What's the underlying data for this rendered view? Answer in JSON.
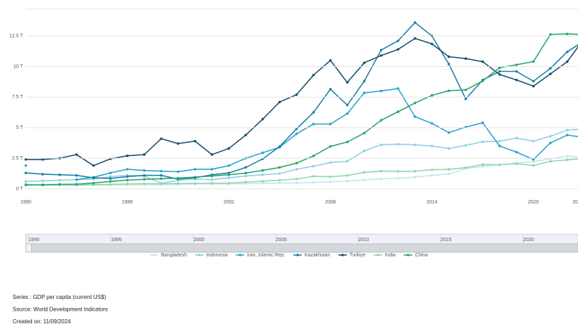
{
  "chart_data": {
    "type": "line",
    "x": [
      1990,
      1991,
      1992,
      1993,
      1994,
      1995,
      1996,
      1997,
      1998,
      1999,
      2000,
      2001,
      2002,
      2003,
      2004,
      2005,
      2006,
      2007,
      2008,
      2009,
      2010,
      2011,
      2012,
      2013,
      2014,
      2015,
      2016,
      2017,
      2018,
      2019,
      2020,
      2021,
      2022,
      2023
    ],
    "xlim": [
      1990,
      2023
    ],
    "xticks": [
      1990,
      1996,
      2002,
      2008,
      2014,
      2020,
      {
        "value": 2023,
        "label": "20"
      }
    ],
    "ylim": [
      0,
      14.7
    ],
    "yticks": [
      {
        "value": 0,
        "label": "0 T"
      },
      {
        "value": 2.5,
        "label": "2.5 T"
      },
      {
        "value": 5,
        "label": "5 T"
      },
      {
        "value": 7.5,
        "label": "7.5 T"
      },
      {
        "value": 10,
        "label": "10 T"
      },
      {
        "value": 12.5,
        "label": "12.5 T"
      }
    ],
    "grid": true,
    "series": [
      {
        "name": "Bangladesh",
        "color": "#c6e4ef",
        "values": [
          0.3,
          0.3,
          0.3,
          0.3,
          0.3,
          0.32,
          0.33,
          0.35,
          0.35,
          0.36,
          0.4,
          0.4,
          0.4,
          0.43,
          0.45,
          0.47,
          0.48,
          0.52,
          0.58,
          0.63,
          0.73,
          0.82,
          0.86,
          0.96,
          1.1,
          1.22,
          1.66,
          1.82,
          1.96,
          2.12,
          2.23,
          2.46,
          2.69,
          2.55
        ]
      },
      {
        "name": "Indonesia",
        "color": "#8fd0e6",
        "values": [
          0.6,
          0.65,
          0.7,
          0.75,
          0.8,
          1.0,
          1.1,
          1.05,
          0.45,
          0.7,
          0.8,
          0.75,
          0.9,
          1.05,
          1.15,
          1.25,
          1.6,
          1.85,
          2.15,
          2.25,
          3.1,
          3.6,
          3.65,
          3.6,
          3.5,
          3.3,
          3.55,
          3.85,
          3.9,
          4.15,
          3.9,
          4.3,
          4.8,
          4.9
        ]
      },
      {
        "name": "Iran, Islamic Rep.",
        "color": "#2aa3cc",
        "values": [
          1.9,
          null,
          null,
          0.75,
          0.95,
          1.3,
          1.6,
          1.5,
          1.45,
          1.4,
          1.6,
          1.6,
          1.9,
          2.5,
          2.95,
          3.4,
          4.5,
          5.3,
          5.3,
          6.15,
          7.85,
          8.0,
          8.2,
          5.9,
          5.35,
          4.6,
          5.05,
          5.4,
          3.5,
          3.0,
          2.4,
          3.75,
          4.4,
          4.2
        ]
      },
      {
        "name": "Kazakhstan",
        "color": "#1b7fa8",
        "values": [
          1.3,
          1.2,
          1.15,
          1.1,
          0.9,
          0.85,
          1.0,
          1.1,
          1.1,
          0.8,
          0.9,
          1.15,
          1.3,
          1.75,
          2.45,
          3.45,
          4.9,
          6.25,
          8.15,
          6.85,
          8.8,
          11.35,
          12.1,
          13.6,
          12.5,
          10.2,
          7.35,
          8.9,
          9.6,
          9.6,
          8.8,
          9.85,
          11.2,
          12.1
        ]
      },
      {
        "name": "Turkiye",
        "color": "#1a4f6e",
        "values": [
          2.4,
          2.4,
          2.5,
          2.8,
          1.9,
          2.45,
          2.7,
          2.8,
          4.1,
          3.7,
          3.9,
          2.8,
          3.3,
          4.4,
          5.7,
          7.1,
          7.7,
          9.3,
          10.5,
          8.7,
          10.3,
          10.9,
          11.4,
          12.3,
          11.85,
          10.8,
          10.65,
          10.4,
          9.35,
          8.9,
          8.4,
          9.4,
          10.4,
          12.3
        ]
      },
      {
        "name": "India",
        "color": "#8fd8a8",
        "values": [
          0.37,
          0.3,
          0.32,
          0.3,
          0.35,
          0.37,
          0.4,
          0.42,
          0.41,
          0.44,
          0.44,
          0.45,
          0.47,
          0.55,
          0.62,
          0.71,
          0.8,
          1.02,
          0.99,
          1.09,
          1.35,
          1.45,
          1.43,
          1.44,
          1.56,
          1.59,
          1.73,
          1.98,
          1.97,
          2.05,
          1.91,
          2.25,
          2.37,
          2.48
        ]
      },
      {
        "name": "China",
        "color": "#27a56b",
        "values": [
          0.32,
          0.33,
          0.37,
          0.38,
          0.47,
          0.61,
          0.71,
          0.78,
          0.83,
          0.87,
          0.96,
          1.05,
          1.15,
          1.29,
          1.51,
          1.75,
          2.1,
          2.69,
          3.47,
          3.83,
          4.55,
          5.61,
          6.3,
          7.02,
          7.64,
          8.02,
          8.09,
          8.82,
          9.91,
          10.14,
          10.41,
          12.62,
          12.67,
          12.6
        ]
      }
    ],
    "navigator": {
      "xlim": [
        1989.5,
        2023
      ],
      "xticks": [
        1990,
        1995,
        2000,
        2005,
        2010,
        2015,
        2020
      ]
    },
    "footer": [
      "Series : GDP per capita (current US$)",
      "Source: World Development Indicators",
      "Created on: 11/09/2024"
    ]
  }
}
